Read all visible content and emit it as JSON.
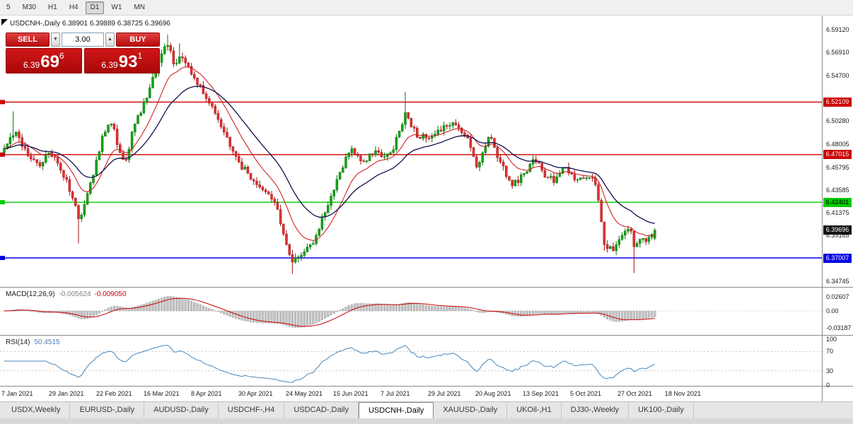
{
  "toolbar": {
    "timeframes": [
      {
        "label": "5",
        "active": false
      },
      {
        "label": "M30",
        "active": false
      },
      {
        "label": "H1",
        "active": false
      },
      {
        "label": "H4",
        "active": false
      },
      {
        "label": "D1",
        "active": true
      },
      {
        "label": "W1",
        "active": false
      },
      {
        "label": "MN",
        "active": false
      }
    ]
  },
  "icons": {
    "collapse": "one-click-collapse",
    "spinner_down": "▼",
    "spinner_up": "▲"
  },
  "chart": {
    "symbol_line": "USDCNH-,Daily 6.38901 6.39889 6.38725 6.39696",
    "trade_panel": {
      "sell_label": "SELL",
      "buy_label": "BUY",
      "volume": "3.00",
      "sell_price": {
        "prefix": "6.39",
        "big": "69",
        "sup": "6"
      },
      "buy_price": {
        "prefix": "6.39",
        "big": "93",
        "sup": "1"
      }
    },
    "price_axis_ticks": [
      "6.59120",
      "6.56910",
      "6.54700",
      "6.50280",
      "6.48005",
      "6.45795",
      "6.43585",
      "6.41375",
      "6.39165",
      "6.34745"
    ],
    "price_badges": [
      {
        "text": "6.52109",
        "price": 6.52109,
        "bg": "#cc0000",
        "fg": "#ffffff"
      },
      {
        "text": "6.47015",
        "price": 6.47015,
        "bg": "#cc0000",
        "fg": "#ffffff"
      },
      {
        "text": "6.42401",
        "price": 6.42401,
        "bg": "#00cc00",
        "fg": "#000000"
      },
      {
        "text": "6.39696",
        "price": 6.39696,
        "bg": "#141414",
        "fg": "#ffffff"
      },
      {
        "text": "6.37007",
        "price": 6.37007,
        "bg": "#0000e6",
        "fg": "#ffffff"
      }
    ],
    "dates": [
      "7 Jan 2021",
      "29 Jan 2021",
      "22 Feb 2021",
      "16 Mar 2021",
      "8 Apr 2021",
      "30 Apr 2021",
      "24 May 2021",
      "15 Jun 2021",
      "7 Jul 2021",
      "29 Jul 2021",
      "20 Aug 2021",
      "13 Sep 2021",
      "5 Oct 2021",
      "27 Oct 2021",
      "18 Nov 2021"
    ]
  },
  "chart_data": {
    "type": "candlestick",
    "title": "USDCNH-,Daily",
    "symbol": "USDCNH-",
    "timeframe": "Daily",
    "ohlc_display": {
      "open": "6.38901",
      "high": "6.39889",
      "low": "6.38725",
      "close": "6.39696"
    },
    "price_range": {
      "min": 6.342,
      "max": 6.6049
    },
    "candles_count": 220,
    "close_waypoints": [
      [
        0,
        6.476
      ],
      [
        2,
        6.487
      ],
      [
        4,
        6.492
      ],
      [
        6,
        6.478
      ],
      [
        9,
        6.466
      ],
      [
        12,
        6.459
      ],
      [
        15,
        6.472
      ],
      [
        17,
        6.468
      ],
      [
        19,
        6.455
      ],
      [
        21,
        6.446
      ],
      [
        23,
        6.428
      ],
      [
        25,
        6.408
      ],
      [
        27,
        6.422
      ],
      [
        29,
        6.443
      ],
      [
        31,
        6.465
      ],
      [
        33,
        6.488
      ],
      [
        35,
        6.499
      ],
      [
        37,
        6.495
      ],
      [
        39,
        6.472
      ],
      [
        41,
        6.465
      ],
      [
        43,
        6.492
      ],
      [
        45,
        6.508
      ],
      [
        47,
        6.521
      ],
      [
        49,
        6.535
      ],
      [
        51,
        6.549
      ],
      [
        53,
        6.568
      ],
      [
        55,
        6.576
      ],
      [
        57,
        6.558
      ],
      [
        59,
        6.565
      ],
      [
        61,
        6.559
      ],
      [
        63,
        6.548
      ],
      [
        65,
        6.538
      ],
      [
        67,
        6.529
      ],
      [
        70,
        6.517
      ],
      [
        73,
        6.497
      ],
      [
        76,
        6.478
      ],
      [
        79,
        6.463
      ],
      [
        82,
        6.452
      ],
      [
        85,
        6.441
      ],
      [
        88,
        6.434
      ],
      [
        91,
        6.424
      ],
      [
        93,
        6.403
      ],
      [
        95,
        6.383
      ],
      [
        97,
        6.366
      ],
      [
        99,
        6.371
      ],
      [
        101,
        6.376
      ],
      [
        103,
        6.383
      ],
      [
        105,
        6.392
      ],
      [
        107,
        6.41
      ],
      [
        109,
        6.421
      ],
      [
        111,
        6.436
      ],
      [
        113,
        6.453
      ],
      [
        115,
        6.468
      ],
      [
        117,
        6.476
      ],
      [
        119,
        6.469
      ],
      [
        121,
        6.464
      ],
      [
        123,
        6.471
      ],
      [
        125,
        6.474
      ],
      [
        127,
        6.468
      ],
      [
        129,
        6.471
      ],
      [
        131,
        6.475
      ],
      [
        133,
        6.493
      ],
      [
        135,
        6.511
      ],
      [
        137,
        6.497
      ],
      [
        139,
        6.487
      ],
      [
        141,
        6.49
      ],
      [
        143,
        6.486
      ],
      [
        145,
        6.49
      ],
      [
        147,
        6.493
      ],
      [
        149,
        6.498
      ],
      [
        151,
        6.501
      ],
      [
        153,
        6.496
      ],
      [
        155,
        6.489
      ],
      [
        157,
        6.477
      ],
      [
        159,
        6.458
      ],
      [
        161,
        6.472
      ],
      [
        163,
        6.487
      ],
      [
        165,
        6.477
      ],
      [
        167,
        6.463
      ],
      [
        169,
        6.449
      ],
      [
        171,
        6.44
      ],
      [
        173,
        6.443
      ],
      [
        175,
        6.452
      ],
      [
        177,
        6.461
      ],
      [
        179,
        6.463
      ],
      [
        181,
        6.455
      ],
      [
        183,
        6.448
      ],
      [
        185,
        6.443
      ],
      [
        187,
        6.452
      ],
      [
        189,
        6.458
      ],
      [
        191,
        6.451
      ],
      [
        193,
        6.446
      ],
      [
        195,
        6.447
      ],
      [
        197,
        6.448
      ],
      [
        199,
        6.441
      ],
      [
        201,
        6.405
      ],
      [
        202,
        6.383
      ],
      [
        203,
        6.379
      ],
      [
        204,
        6.381
      ],
      [
        205,
        6.377
      ],
      [
        206,
        6.383
      ],
      [
        207,
        6.388
      ],
      [
        208,
        6.392
      ],
      [
        209,
        6.396
      ],
      [
        210,
        6.398
      ],
      [
        211,
        6.396
      ],
      [
        212,
        6.381
      ],
      [
        213,
        6.384
      ],
      [
        214,
        6.388
      ],
      [
        215,
        6.389
      ],
      [
        216,
        6.386
      ],
      [
        217,
        6.39
      ],
      [
        218,
        6.393
      ],
      [
        219,
        6.39696
      ]
    ],
    "spikes": [
      {
        "i": 3,
        "high": 6.512
      },
      {
        "i": 25,
        "low": 6.384
      },
      {
        "i": 55,
        "high": 6.5865
      },
      {
        "i": 59,
        "high": 6.578
      },
      {
        "i": 97,
        "low": 6.3545
      },
      {
        "i": 135,
        "high": 6.531
      },
      {
        "i": 202,
        "low": 6.377
      },
      {
        "i": 212,
        "low": 6.3555
      }
    ],
    "last_candle": {
      "open": 6.38901,
      "high": 6.39889,
      "low": 6.38725,
      "close": 6.39696
    },
    "noise": {
      "seed": 11,
      "amp": 0.004,
      "wick": 0.0045
    },
    "colors": {
      "up": "#17a317",
      "up_dark": "#0c720c",
      "down": "#e03232",
      "down_dark": "#a31212"
    },
    "moving_averages": [
      {
        "type": "ema",
        "period": 12,
        "color": "#cc1111",
        "width": 1
      },
      {
        "type": "ema",
        "period": 26,
        "color": "#101050",
        "width": 1.3
      }
    ],
    "hlines": [
      {
        "price": 6.52109,
        "color": "#cc0000"
      },
      {
        "price": 6.47015,
        "color": "#cc0000"
      },
      {
        "price": 6.42401,
        "color": "#00cc00"
      },
      {
        "price": 6.37007,
        "color": "#0000e6"
      }
    ],
    "macd": {
      "label": "MACD(12,26,9)",
      "value_main": "-0.005624",
      "value_signal": "-0.009050",
      "params": [
        12,
        26,
        9
      ],
      "scale_top": 0.0421,
      "scale_bottom": -0.0448,
      "axis_ticks": [
        {
          "label": "0.02607",
          "value": 0.02607
        },
        {
          "label": "0.00",
          "value": 0
        },
        {
          "label": "-0.03187",
          "value": -0.03187
        }
      ],
      "histogram_color": "#c0c0c0",
      "signal_color": "#cc0000"
    },
    "rsi": {
      "label": "RSI(14)",
      "value": "50.4515",
      "period": 14,
      "axis_ticks": [
        100,
        70,
        30,
        0
      ],
      "levels": [
        70,
        30
      ],
      "color": "#4a86b8"
    }
  },
  "bottom_tabs": {
    "items": [
      "USDX,Weekly",
      "EURUSD-,Daily",
      "AUDUSD-,Daily",
      "USDCHF-,H4",
      "USDCAD-,Daily",
      "USDCNH-,Daily",
      "XAUUSD-,Daily",
      "UKOil-,H1",
      "DJ30-,Weekly",
      "UK100-,Daily"
    ],
    "active_index": 5
  }
}
